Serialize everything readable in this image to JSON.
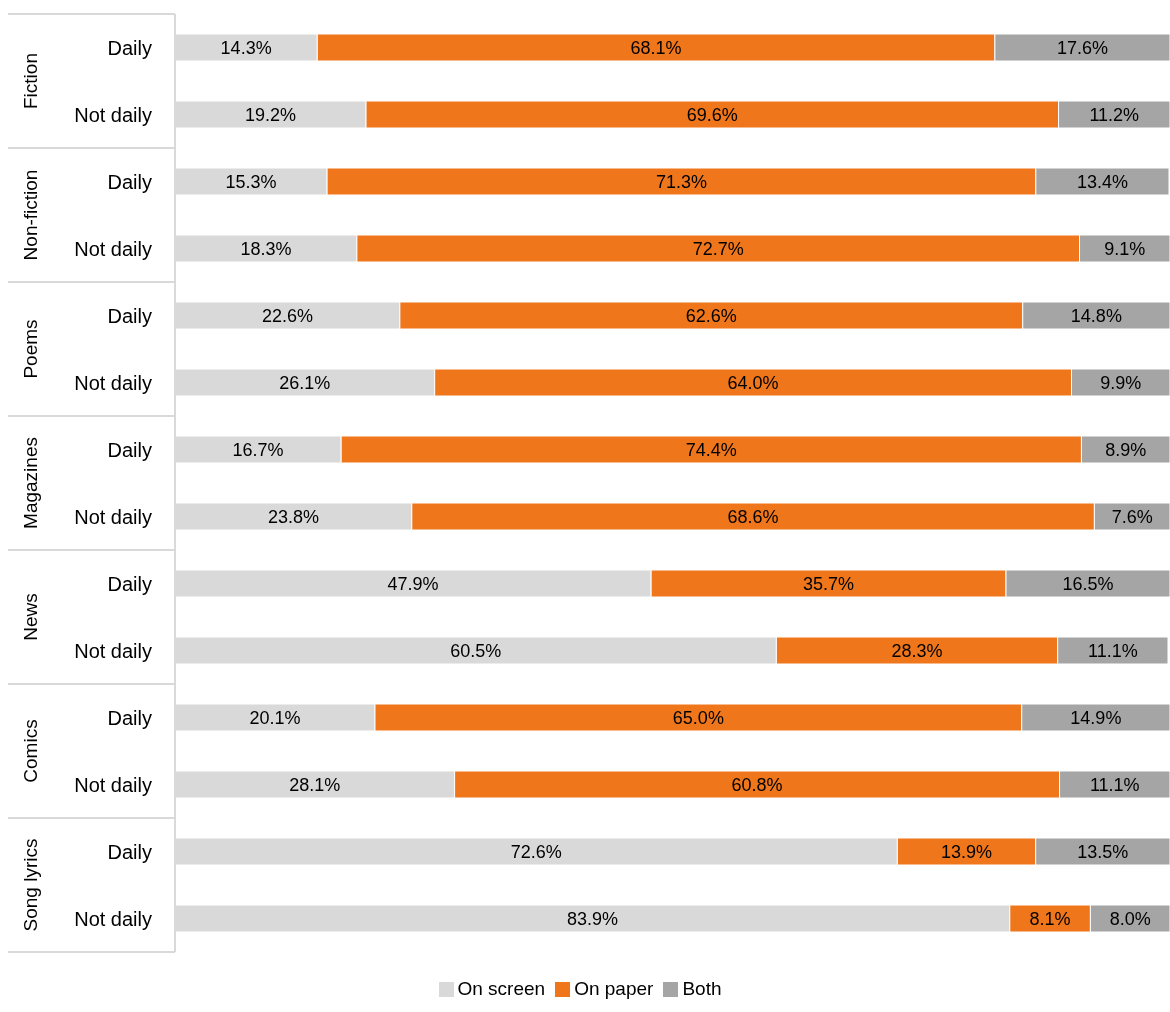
{
  "chart_data": [
    {
      "type": "bar",
      "orientation": "horizontal",
      "stacked": true,
      "ylabel": "Fiction",
      "categories": [
        "Daily",
        "Not daily"
      ],
      "xlim": [
        0,
        100
      ],
      "tick_labels": "y",
      "series": [
        {
          "color": "#d9d9d9",
          "values": [
            14.3,
            19.2
          ],
          "value_labels": [
            "14.3%",
            "19.2%"
          ]
        },
        {
          "color": "#ef761b",
          "values": [
            68.1,
            69.6
          ],
          "value_labels": [
            "68.1%",
            "69.6%"
          ]
        },
        {
          "color": "#a5a5a5",
          "values": [
            17.6,
            11.2
          ],
          "value_labels": [
            "17.6%",
            "11.2%"
          ]
        }
      ]
    },
    {
      "type": "bar",
      "orientation": "horizontal",
      "stacked": true,
      "ylabel": "Non-fiction",
      "categories": [
        "Daily",
        "Not daily"
      ],
      "xlim": [
        0,
        100.1
      ],
      "tick_labels": "y",
      "series": [
        {
          "color": "#d9d9d9",
          "values": [
            15.3,
            18.3
          ],
          "value_labels": [
            "15.3%",
            "18.3%"
          ]
        },
        {
          "color": "#ef761b",
          "values": [
            71.3,
            72.7
          ],
          "value_labels": [
            "71.3%",
            "72.7%"
          ]
        },
        {
          "color": "#a5a5a5",
          "values": [
            13.4,
            9.1
          ],
          "value_labels": [
            "13.4%",
            "9.1%"
          ]
        }
      ]
    },
    {
      "type": "bar",
      "orientation": "horizontal",
      "stacked": true,
      "ylabel": "Poems",
      "categories": [
        "Daily",
        "Not daily"
      ],
      "xlim": [
        0,
        100
      ],
      "tick_labels": "y",
      "series": [
        {
          "color": "#d9d9d9",
          "values": [
            22.6,
            26.1
          ],
          "value_labels": [
            "22.6%",
            "26.1%"
          ]
        },
        {
          "color": "#ef761b",
          "values": [
            62.6,
            64.0
          ],
          "value_labels": [
            "62.6%",
            "64.0%"
          ]
        },
        {
          "color": "#a5a5a5",
          "values": [
            14.8,
            9.9
          ],
          "value_labels": [
            "14.8%",
            "9.9%"
          ]
        }
      ]
    },
    {
      "type": "bar",
      "orientation": "horizontal",
      "stacked": true,
      "ylabel": "Magazines",
      "categories": [
        "Daily",
        "Not daily"
      ],
      "xlim": [
        0,
        100
      ],
      "tick_labels": "y",
      "series": [
        {
          "color": "#d9d9d9",
          "values": [
            16.7,
            23.8
          ],
          "value_labels": [
            "16.7%",
            "23.8%"
          ]
        },
        {
          "color": "#ef761b",
          "values": [
            74.4,
            68.6
          ],
          "value_labels": [
            "74.4%",
            "68.6%"
          ]
        },
        {
          "color": "#a5a5a5",
          "values": [
            8.9,
            7.6
          ],
          "value_labels": [
            "8.9%",
            "7.6%"
          ]
        }
      ]
    },
    {
      "type": "bar",
      "orientation": "horizontal",
      "stacked": true,
      "ylabel": "News",
      "categories": [
        "Daily",
        "Not daily"
      ],
      "xlim": [
        0,
        100.1
      ],
      "tick_labels": "y",
      "series": [
        {
          "color": "#d9d9d9",
          "values": [
            47.9,
            60.5
          ],
          "value_labels": [
            "47.9%",
            "60.5%"
          ]
        },
        {
          "color": "#ef761b",
          "values": [
            35.7,
            28.3
          ],
          "value_labels": [
            "35.7%",
            "28.3%"
          ]
        },
        {
          "color": "#a5a5a5",
          "values": [
            16.5,
            11.1
          ],
          "value_labels": [
            "16.5%",
            "11.1%"
          ]
        }
      ]
    },
    {
      "type": "bar",
      "orientation": "horizontal",
      "stacked": true,
      "ylabel": "Comics",
      "categories": [
        "Daily",
        "Not daily"
      ],
      "xlim": [
        0,
        100
      ],
      "tick_labels": "y",
      "series": [
        {
          "color": "#d9d9d9",
          "values": [
            20.1,
            28.1
          ],
          "value_labels": [
            "20.1%",
            "28.1%"
          ]
        },
        {
          "color": "#ef761b",
          "values": [
            65.0,
            60.8
          ],
          "value_labels": [
            "65.0%",
            "60.8%"
          ]
        },
        {
          "color": "#a5a5a5",
          "values": [
            14.9,
            11.1
          ],
          "value_labels": [
            "14.9%",
            "11.1%"
          ]
        }
      ]
    },
    {
      "type": "bar",
      "orientation": "horizontal",
      "stacked": true,
      "ylabel": "Song lyrics",
      "categories": [
        "Daily",
        "Not daily"
      ],
      "xlim": [
        0,
        100
      ],
      "tick_labels": "y",
      "legend": "bottom",
      "series": [
        {
          "name": "On screen",
          "color": "#d9d9d9",
          "values": [
            72.6,
            83.9
          ],
          "value_labels": [
            "72.6%",
            "83.9%"
          ]
        },
        {
          "name": "On paper",
          "color": "#ef761b",
          "values": [
            13.9,
            8.1
          ],
          "value_labels": [
            "13.9%",
            "8.1%"
          ]
        },
        {
          "name": "Both",
          "color": "#a5a5a5",
          "values": [
            13.5,
            8.0
          ],
          "value_labels": [
            "13.5%",
            "8.0%"
          ]
        }
      ]
    }
  ]
}
